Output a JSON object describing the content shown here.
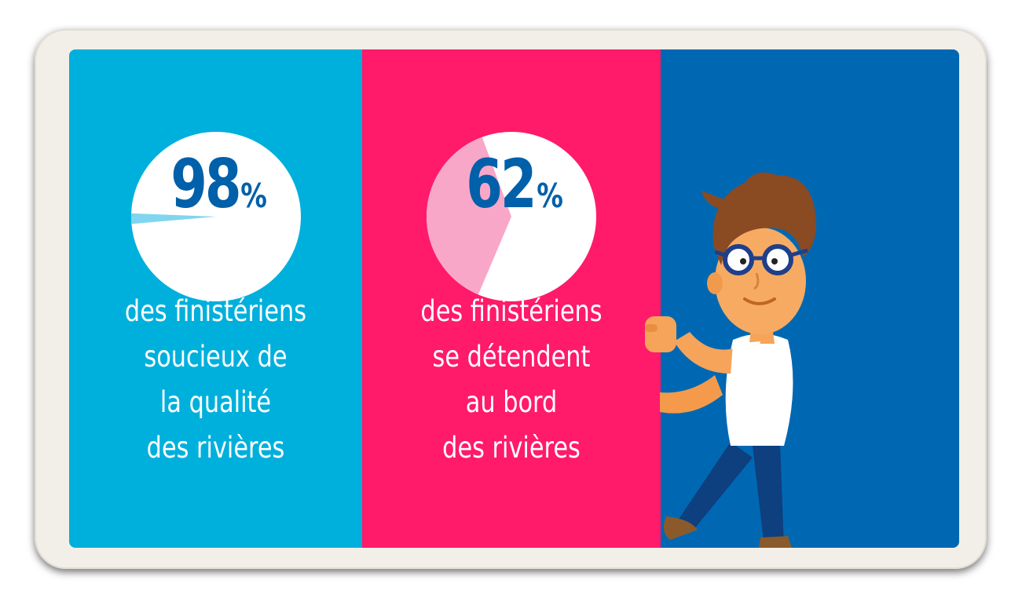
{
  "colors": {
    "panel_1": "#00b0dc",
    "panel_2": "#ff1a6a",
    "panel_3": "#0068b3",
    "pie_accent_1": "#7fd6ee",
    "pie_accent_2": "#f9a7c8",
    "number": "#0060aa"
  },
  "stats": [
    {
      "percent": "98",
      "percent_sign": "%",
      "value": 0.98,
      "caption_lines": [
        "des finistériens",
        "soucieux de",
        "la qualité",
        "des rivières"
      ]
    },
    {
      "percent": "62",
      "percent_sign": "%",
      "value": 0.62,
      "caption_lines": [
        "des finistériens",
        "se détendent",
        "au bord",
        "des rivières"
      ]
    }
  ],
  "illustration": {
    "icon": "cartoon-man-with-glasses-icon"
  }
}
